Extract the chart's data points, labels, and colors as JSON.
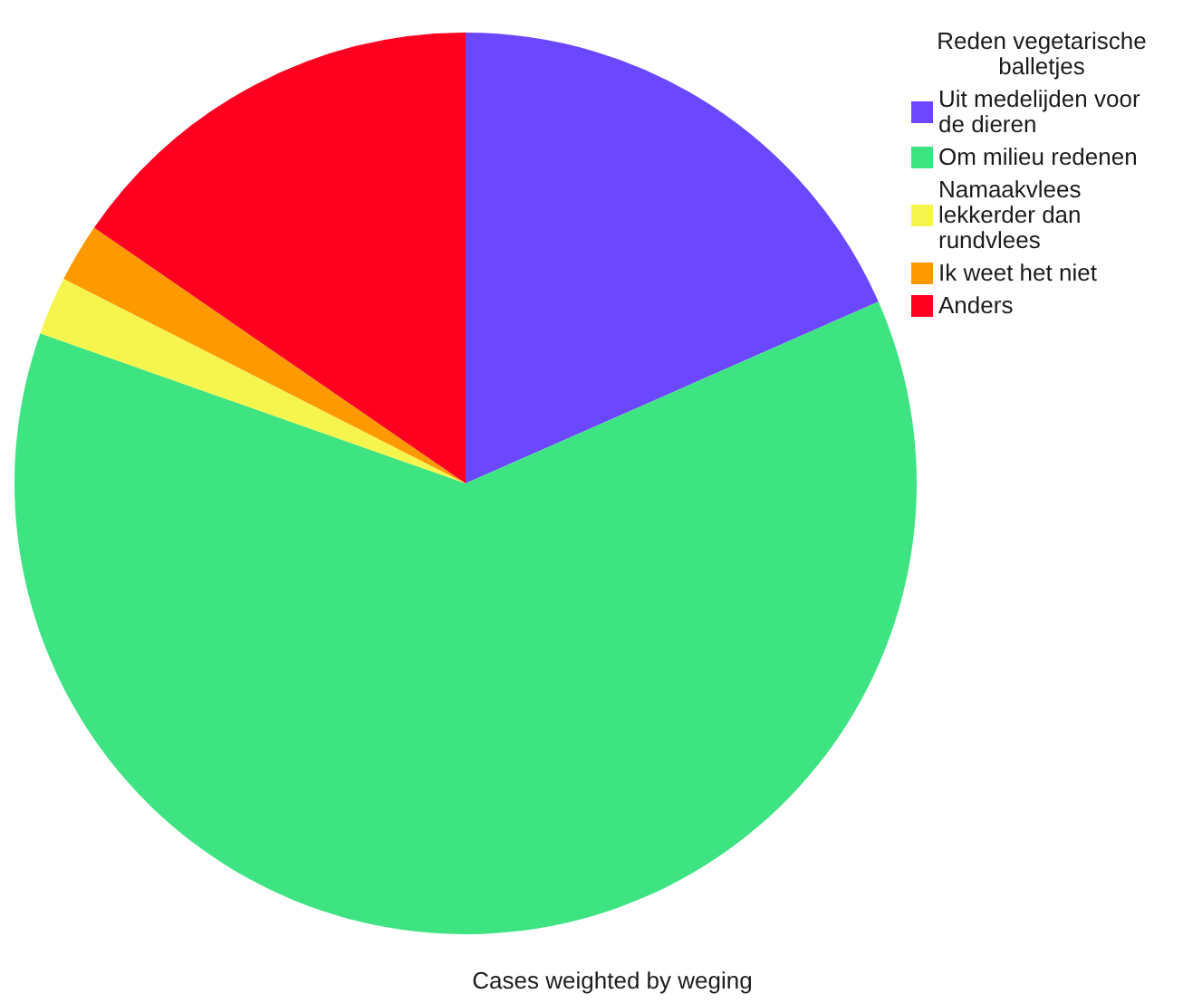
{
  "chart_data": {
    "type": "pie",
    "categories": [
      "Uit medelijden voor de dieren",
      "Om milieu redenen",
      "Namaakvlees lekkerder dan rundvlees",
      "Ik weet het niet",
      "Anders"
    ],
    "values": [
      18.4,
      62.0,
      2.1,
      2.1,
      15.4
    ],
    "colors": [
      "#6b47ff",
      "#3de481",
      "#f5f54d",
      "#ff9900",
      "#ff0020"
    ],
    "legend": "top right",
    "legend_title": "Reden vegetarische balletjes",
    "annotations": [
      "Cases weighted by weging"
    ]
  }
}
